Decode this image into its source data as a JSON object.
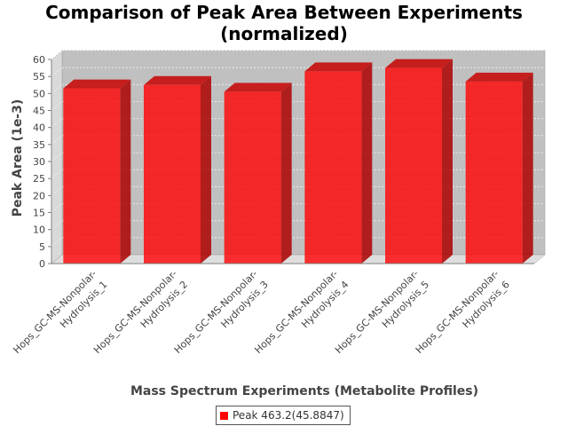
{
  "chart_data": {
    "type": "bar",
    "style": "3d",
    "title_lines": [
      "Comparison of Peak Area Between Experiments",
      "(normalized)"
    ],
    "xlabel": "Mass Spectrum Experiments (Metabolite Profiles)",
    "ylabel": "Peak Area (1e-3)",
    "ylim": [
      0,
      60
    ],
    "yticks": [
      0,
      5,
      10,
      15,
      20,
      25,
      30,
      35,
      40,
      45,
      50,
      55,
      60
    ],
    "grid": true,
    "legend_position": "bottom",
    "categories": [
      [
        "Hops_GC-MS-Nonpolar-",
        "Hydrolysis_1"
      ],
      [
        "Hops_GC-MS-Nonpolar-",
        "Hydrolysis_2"
      ],
      [
        "Hops_GC-MS-Nonpolar-",
        "Hydrolysis_3"
      ],
      [
        "Hops_GC-MS-Nonpolar-",
        "Hydrolysis_4"
      ],
      [
        "Hops_GC-MS-Nonpolar-",
        "Hydrolysis_5"
      ],
      [
        "Hops_GC-MS-Nonpolar-",
        "Hydrolysis_6"
      ]
    ],
    "series": [
      {
        "name": "Peak 463.2(45.8847)",
        "color": "#ff0000",
        "values": [
          51.5,
          52.5,
          50.5,
          56.5,
          57.5,
          53.5
        ]
      }
    ]
  }
}
